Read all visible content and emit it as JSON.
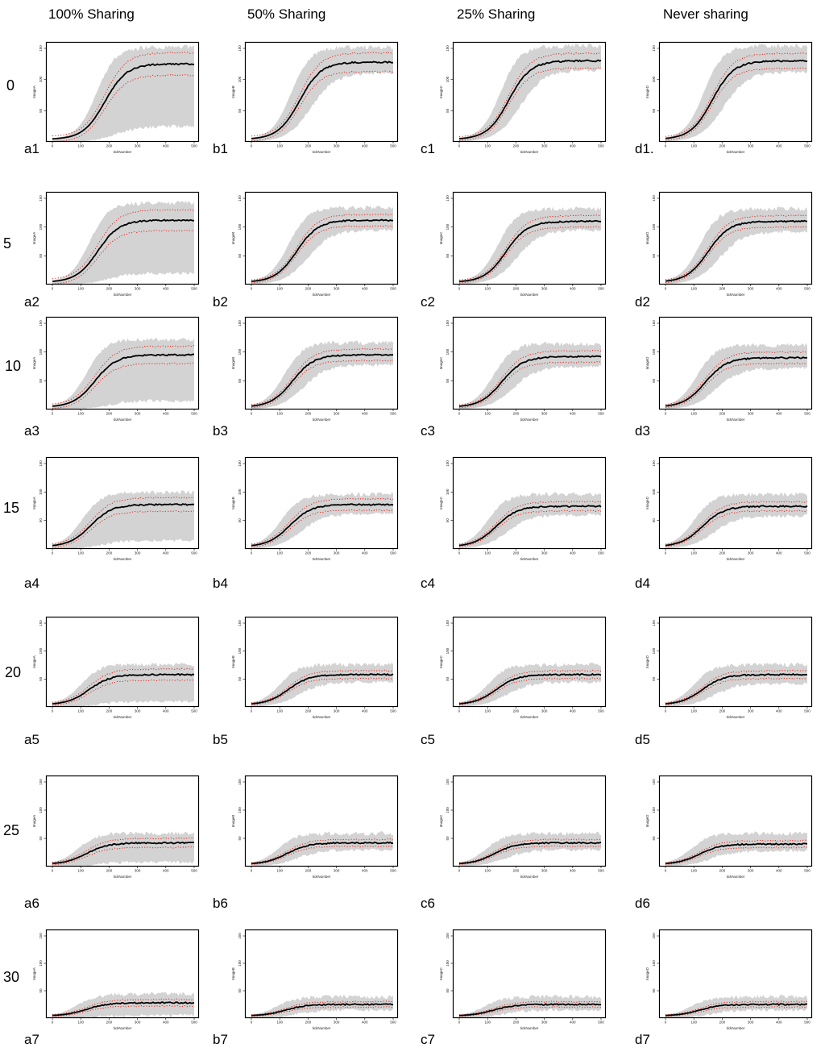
{
  "columns": [
    {
      "key": "a",
      "header": "100% Sharing",
      "ylabel": "ImageA"
    },
    {
      "key": "b",
      "header": "50% Sharing",
      "ylabel": "ImageB"
    },
    {
      "key": "c",
      "header": "25% Sharing",
      "ylabel": "ImageC"
    },
    {
      "key": "d",
      "header": "Never sharing",
      "ylabel": "ImageD"
    }
  ],
  "rows": [
    {
      "label": "0",
      "panel_ids": [
        "a1",
        "b1",
        "c1",
        "d1."
      ]
    },
    {
      "label": "5",
      "panel_ids": [
        "a2",
        "b2",
        "c2",
        "d2"
      ]
    },
    {
      "label": "10",
      "panel_ids": [
        "a3",
        "b3",
        "c3",
        "d3"
      ]
    },
    {
      "label": "15",
      "panel_ids": [
        "a4",
        "b4",
        "c4",
        "d4"
      ]
    },
    {
      "label": "20",
      "panel_ids": [
        "a5",
        "b5",
        "c5",
        "d5"
      ]
    },
    {
      "label": "25",
      "panel_ids": [
        "a6",
        "b6",
        "c6",
        "d6"
      ]
    },
    {
      "label": "30",
      "panel_ids": [
        "a7",
        "b7",
        "c7",
        "d7"
      ]
    }
  ],
  "chart_data": {
    "type": "line",
    "description_of_series": "each panel: solid mean line, red dotted +/- band lines, grey min-max shaded area",
    "xlabel": "tickNumber",
    "xlim": [
      0,
      500
    ],
    "xticks": [
      0,
      100,
      200,
      300,
      400,
      500
    ],
    "ylim": [
      0,
      150
    ],
    "yticks": [
      0,
      50,
      100,
      150
    ],
    "colors": {
      "mean": "#000000",
      "band": "#e0251b",
      "range": "#d3d3d3"
    },
    "panels": [
      [
        {
          "id": "a1",
          "plateau": 125,
          "midpoint": 185,
          "band": 18,
          "range_low": 25,
          "range_high": 148
        },
        {
          "id": "b1",
          "plateau": 128,
          "midpoint": 170,
          "band": 15,
          "range_low": 110,
          "range_high": 148
        },
        {
          "id": "c1",
          "plateau": 130,
          "midpoint": 175,
          "band": 12,
          "range_low": 115,
          "range_high": 150
        },
        {
          "id": "d1.",
          "plateau": 130,
          "midpoint": 165,
          "band": 12,
          "range_low": 112,
          "range_high": 150
        }
      ],
      [
        {
          "id": "a2",
          "plateau": 112,
          "midpoint": 160,
          "band": 18,
          "range_low": 20,
          "range_high": 138
        },
        {
          "id": "b2",
          "plateau": 112,
          "midpoint": 160,
          "band": 10,
          "range_low": 95,
          "range_high": 130
        },
        {
          "id": "c2",
          "plateau": 110,
          "midpoint": 165,
          "band": 10,
          "range_low": 95,
          "range_high": 128
        },
        {
          "id": "d2",
          "plateau": 110,
          "midpoint": 150,
          "band": 10,
          "range_low": 92,
          "range_high": 128
        }
      ],
      [
        {
          "id": "a3",
          "plateau": 95,
          "midpoint": 150,
          "band": 15,
          "range_low": 15,
          "range_high": 118
        },
        {
          "id": "b3",
          "plateau": 95,
          "midpoint": 145,
          "band": 10,
          "range_low": 78,
          "range_high": 112
        },
        {
          "id": "c3",
          "plateau": 92,
          "midpoint": 150,
          "band": 10,
          "range_low": 75,
          "range_high": 110
        },
        {
          "id": "d3",
          "plateau": 90,
          "midpoint": 140,
          "band": 10,
          "range_low": 72,
          "range_high": 108
        }
      ],
      [
        {
          "id": "a4",
          "plateau": 78,
          "midpoint": 135,
          "band": 12,
          "range_low": 15,
          "range_high": 95
        },
        {
          "id": "b4",
          "plateau": 78,
          "midpoint": 135,
          "band": 10,
          "range_low": 62,
          "range_high": 92
        },
        {
          "id": "c4",
          "plateau": 75,
          "midpoint": 130,
          "band": 8,
          "range_low": 60,
          "range_high": 92
        },
        {
          "id": "d4",
          "plateau": 75,
          "midpoint": 130,
          "band": 8,
          "range_low": 58,
          "range_high": 92
        }
      ],
      [
        {
          "id": "a5",
          "plateau": 58,
          "midpoint": 130,
          "band": 10,
          "range_low": 10,
          "range_high": 72
        },
        {
          "id": "b5",
          "plateau": 58,
          "midpoint": 130,
          "band": 7,
          "range_low": 45,
          "range_high": 72
        },
        {
          "id": "c5",
          "plateau": 58,
          "midpoint": 130,
          "band": 7,
          "range_low": 45,
          "range_high": 72
        },
        {
          "id": "d5",
          "plateau": 58,
          "midpoint": 130,
          "band": 7,
          "range_low": 42,
          "range_high": 72
        }
      ],
      [
        {
          "id": "a6",
          "plateau": 42,
          "midpoint": 120,
          "band": 8,
          "range_low": 8,
          "range_high": 55
        },
        {
          "id": "b6",
          "plateau": 42,
          "midpoint": 125,
          "band": 6,
          "range_low": 30,
          "range_high": 55
        },
        {
          "id": "c6",
          "plateau": 42,
          "midpoint": 125,
          "band": 6,
          "range_low": 30,
          "range_high": 55
        },
        {
          "id": "d6",
          "plateau": 40,
          "midpoint": 120,
          "band": 6,
          "range_low": 28,
          "range_high": 55
        }
      ],
      [
        {
          "id": "a7",
          "plateau": 28,
          "midpoint": 120,
          "band": 6,
          "range_low": 5,
          "range_high": 40
        },
        {
          "id": "b7",
          "plateau": 25,
          "midpoint": 120,
          "band": 5,
          "range_low": 15,
          "range_high": 35
        },
        {
          "id": "c7",
          "plateau": 25,
          "midpoint": 120,
          "band": 5,
          "range_low": 15,
          "range_high": 35
        },
        {
          "id": "d7",
          "plateau": 25,
          "midpoint": 120,
          "band": 5,
          "range_low": 15,
          "range_high": 35
        }
      ]
    ]
  }
}
